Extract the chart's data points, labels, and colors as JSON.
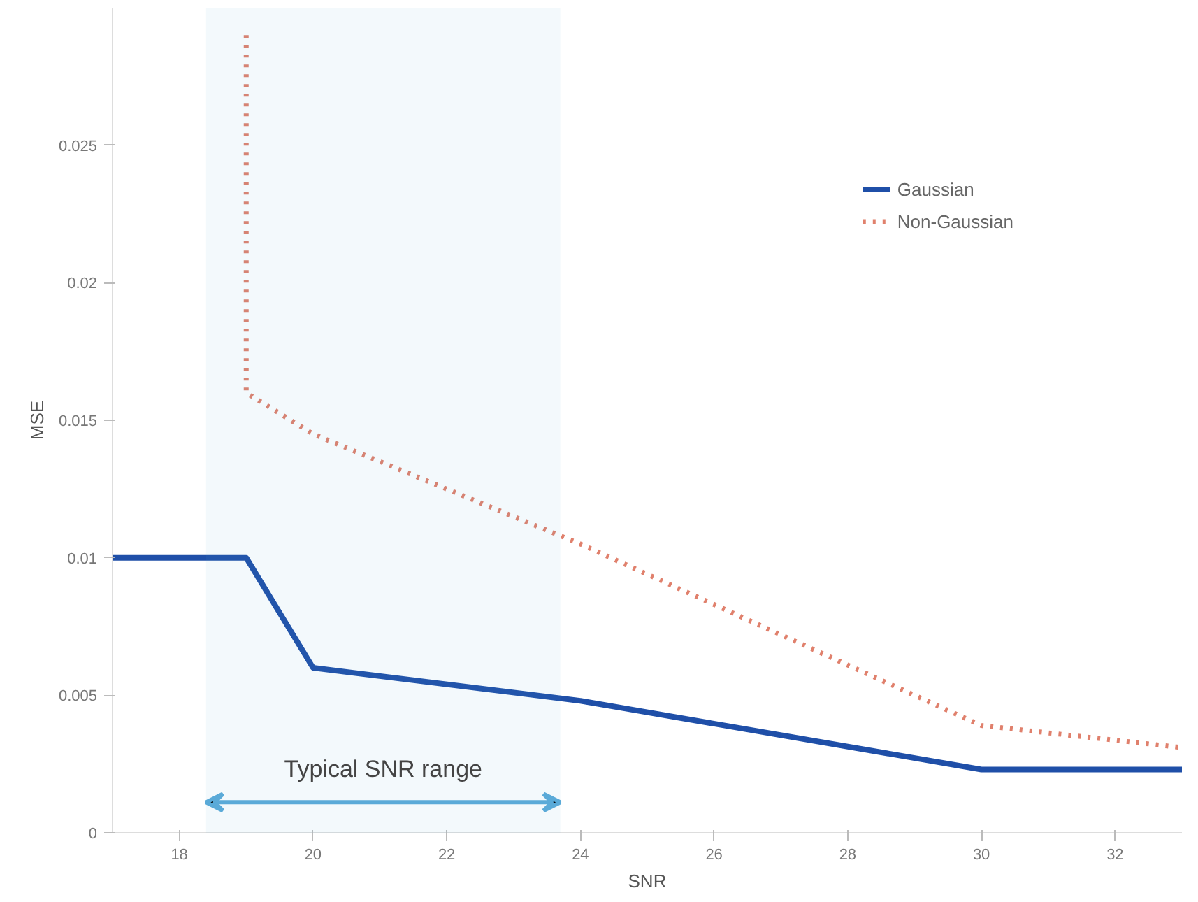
{
  "chart_data": {
    "type": "line",
    "xlabel": "SNR",
    "ylabel": "MSE",
    "xlim": [
      17,
      33
    ],
    "xticks": [
      18,
      20,
      22,
      24,
      26,
      28,
      30,
      32
    ],
    "ylim": [
      0,
      0.03
    ],
    "yticks": [
      0,
      0.005,
      0.01,
      0.015,
      0.02,
      0.025
    ],
    "series": [
      {
        "name": "Gaussian",
        "color": "#1f4fa8",
        "line_style": "solid",
        "x": [
          17,
          19,
          20,
          24,
          30,
          33
        ],
        "values": [
          0.01,
          0.01,
          0.006,
          0.0048,
          0.0023,
          0.0023
        ]
      },
      {
        "name": "Non-Gaussian",
        "color": "#e0806c",
        "line_style": "dotted",
        "x": [
          19,
          19,
          20,
          24,
          30,
          33
        ],
        "values": [
          0.029,
          0.016,
          0.0145,
          0.0105,
          0.0039,
          0.0031
        ]
      }
    ],
    "bands": [
      {
        "axis": "x",
        "from": 18.4,
        "to": 23.7,
        "label": "Typical SNR range",
        "color": "#5aaad8"
      }
    ],
    "grid": false,
    "legend": "top right"
  }
}
